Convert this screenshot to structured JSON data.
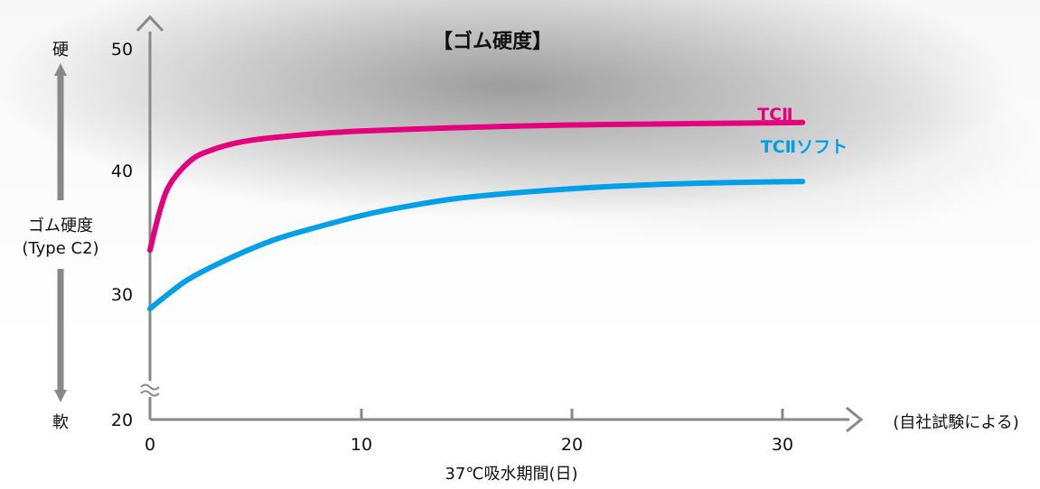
{
  "chart_data": {
    "type": "line",
    "title": "【ゴム硬度】",
    "xlabel": "37℃吸水期間(日)",
    "ylabel": [
      "ゴム硬度",
      "(Type C2)"
    ],
    "y_hard_label": "硬",
    "y_soft_label": "軟",
    "note": "(自社試験による)",
    "xlim": [
      0,
      31
    ],
    "ylim": [
      20,
      50
    ],
    "y_axis_break": true,
    "x_ticks": [
      0,
      10,
      20,
      30
    ],
    "x_tick_labels": [
      "0",
      "10",
      "20",
      "30"
    ],
    "y_ticks": [
      20,
      30,
      40,
      50
    ],
    "y_tick_labels": [
      "20",
      "30",
      "40",
      "50"
    ],
    "grid": false,
    "series": [
      {
        "name": "TCⅡ",
        "color": "#e5007e",
        "x": [
          0,
          0.5,
          1,
          2,
          3,
          4,
          5,
          6,
          8,
          10,
          15,
          20,
          25,
          31
        ],
        "y": [
          34.1,
          37.5,
          39.6,
          41.5,
          42.3,
          42.8,
          43.1,
          43.3,
          43.6,
          43.8,
          44.1,
          44.3,
          44.4,
          44.5
        ]
      },
      {
        "name": "TCⅡソフト",
        "color": "#00a0e9",
        "x": [
          0,
          1,
          2,
          4,
          6,
          8,
          10,
          12,
          15,
          20,
          25,
          31
        ],
        "y": [
          29.3,
          30.7,
          31.9,
          33.6,
          35.0,
          36.0,
          36.9,
          37.6,
          38.4,
          39.1,
          39.5,
          39.7
        ]
      }
    ]
  }
}
